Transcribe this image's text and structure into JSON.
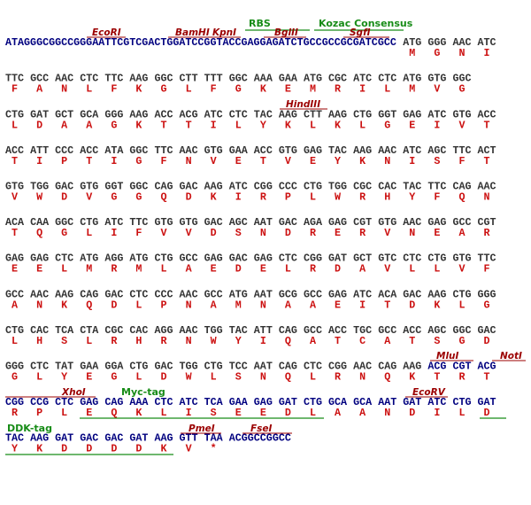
{
  "rows": [
    {
      "segments": [
        {
          "color": "#00007f",
          "codons": [
            "ATAGGGCGGCCGGGAATTCGTCGACTGGATCCGGTACCGAGGAGATCTGCCGCCGCGATCGCC"
          ]
        },
        {
          "color": "#333333",
          "codons": [
            "ATG",
            "GGG",
            "AAC",
            "ATC"
          ],
          "aa": [
            "M",
            "G",
            "N",
            "I"
          ]
        }
      ]
    },
    {
      "segments": [
        {
          "color": "#333333",
          "codons": [
            "TTC",
            "GCC",
            "AAC",
            "CTC",
            "TTC",
            "AAG",
            "GGC",
            "CTT",
            "TTT",
            "GGC",
            "AAA",
            "GAA",
            "ATG",
            "CGC",
            "ATC",
            "CTC",
            "ATG",
            "GTG",
            "GGC"
          ],
          "aa": [
            "F",
            "A",
            "N",
            "L",
            "F",
            "K",
            "G",
            "L",
            "F",
            "G",
            "K",
            "E",
            "M",
            "R",
            "I",
            "L",
            "M",
            "V",
            "G"
          ]
        }
      ]
    },
    {
      "segments": [
        {
          "color": "#333333",
          "codons": [
            "CTG",
            "GAT",
            "GCT",
            "GCA",
            "GGG",
            "AAG",
            "ACC",
            "ACG",
            "ATC",
            "CTC",
            "TAC",
            "AAG",
            "CTT",
            "AAG",
            "CTG",
            "GGT",
            "GAG",
            "ATC",
            "GTG",
            "ACC"
          ],
          "aa": [
            "L",
            "D",
            "A",
            "A",
            "G",
            "K",
            "T",
            "T",
            "I",
            "L",
            "Y",
            "K",
            "L",
            "K",
            "L",
            "G",
            "E",
            "I",
            "V",
            "T"
          ]
        }
      ]
    },
    {
      "segments": [
        {
          "color": "#333333",
          "codons": [
            "ACC",
            "ATT",
            "CCC",
            "ACC",
            "ATA",
            "GGC",
            "TTC",
            "AAC",
            "GTG",
            "GAA",
            "ACC",
            "GTG",
            "GAG",
            "TAC",
            "AAG",
            "AAC",
            "ATC",
            "AGC",
            "TTC",
            "ACT"
          ],
          "aa": [
            "T",
            "I",
            "P",
            "T",
            "I",
            "G",
            "F",
            "N",
            "V",
            "E",
            "T",
            "V",
            "E",
            "Y",
            "K",
            "N",
            "I",
            "S",
            "F",
            "T"
          ]
        }
      ]
    },
    {
      "segments": [
        {
          "color": "#333333",
          "codons": [
            "GTG",
            "TGG",
            "GAC",
            "GTG",
            "GGT",
            "GGC",
            "CAG",
            "GAC",
            "AAG",
            "ATC",
            "CGG",
            "CCC",
            "CTG",
            "TGG",
            "CGC",
            "CAC",
            "TAC",
            "TTC",
            "CAG",
            "AAC"
          ],
          "aa": [
            "V",
            "W",
            "D",
            "V",
            "G",
            "G",
            "Q",
            "D",
            "K",
            "I",
            "R",
            "P",
            "L",
            "W",
            "R",
            "H",
            "Y",
            "F",
            "Q",
            "N"
          ]
        }
      ]
    },
    {
      "segments": [
        {
          "color": "#333333",
          "codons": [
            "ACA",
            "CAA",
            "GGC",
            "CTG",
            "ATC",
            "TTC",
            "GTG",
            "GTG",
            "GAC",
            "AGC",
            "AAT",
            "GAC",
            "AGA",
            "GAG",
            "CGT",
            "GTG",
            "AAC",
            "GAG",
            "GCC",
            "CGT"
          ],
          "aa": [
            "T",
            "Q",
            "G",
            "L",
            "I",
            "F",
            "V",
            "V",
            "D",
            "S",
            "N",
            "D",
            "R",
            "E",
            "R",
            "V",
            "N",
            "E",
            "A",
            "R"
          ]
        }
      ]
    },
    {
      "segments": [
        {
          "color": "#333333",
          "codons": [
            "GAG",
            "GAG",
            "CTC",
            "ATG",
            "AGG",
            "ATG",
            "CTG",
            "GCC",
            "GAG",
            "GAC",
            "GAG",
            "CTC",
            "CGG",
            "GAT",
            "GCT",
            "GTC",
            "CTC",
            "CTG",
            "GTG",
            "TTC"
          ],
          "aa": [
            "E",
            "E",
            "L",
            "M",
            "R",
            "M",
            "L",
            "A",
            "E",
            "D",
            "E",
            "L",
            "R",
            "D",
            "A",
            "V",
            "L",
            "L",
            "V",
            "F"
          ]
        }
      ]
    },
    {
      "segments": [
        {
          "color": "#333333",
          "codons": [
            "GCC",
            "AAC",
            "AAG",
            "CAG",
            "GAC",
            "CTC",
            "CCC",
            "AAC",
            "GCC",
            "ATG",
            "AAT",
            "GCG",
            "GCC",
            "GAG",
            "ATC",
            "ACA",
            "GAC",
            "AAG",
            "CTG",
            "GGG"
          ],
          "aa": [
            "A",
            "N",
            "K",
            "Q",
            "D",
            "L",
            "P",
            "N",
            "A",
            "M",
            "N",
            "A",
            "A",
            "E",
            "I",
            "T",
            "D",
            "K",
            "L",
            "G"
          ]
        }
      ]
    },
    {
      "segments": [
        {
          "color": "#333333",
          "codons": [
            "CTG",
            "CAC",
            "TCA",
            "CTA",
            "CGC",
            "CAC",
            "AGG",
            "AAC",
            "TGG",
            "TAC",
            "ATT",
            "CAG",
            "GCC",
            "ACC",
            "TGC",
            "GCC",
            "ACC",
            "AGC",
            "GGC",
            "GAC"
          ],
          "aa": [
            "L",
            "H",
            "S",
            "L",
            "R",
            "H",
            "R",
            "N",
            "W",
            "Y",
            "I",
            "Q",
            "A",
            "T",
            "C",
            "A",
            "T",
            "S",
            "G",
            "D"
          ]
        }
      ]
    },
    {
      "segments": [
        {
          "color": "#333333",
          "codons": [
            "GGG",
            "CTC",
            "TAT",
            "GAA",
            "GGA",
            "CTG",
            "GAC",
            "TGG",
            "CTG",
            "TCC",
            "AAT",
            "CAG",
            "CTC",
            "CGG",
            "AAC",
            "CAG",
            "AAG"
          ],
          "aa": [
            "G",
            "L",
            "Y",
            "E",
            "G",
            "L",
            "D",
            "W",
            "L",
            "S",
            "N",
            "Q",
            "L",
            "R",
            "N",
            "Q",
            "K"
          ]
        },
        {
          "color": "#00007f",
          "codons": [
            "ACG",
            "CGT",
            "ACG"
          ],
          "aa": [
            "T",
            "R",
            "T"
          ]
        }
      ]
    },
    {
      "segments": [
        {
          "color": "#00007f",
          "codons": [
            "CGG",
            "CCG",
            "CTC",
            "GAG",
            "CAG",
            "AAA",
            "CTC",
            "ATC",
            "TCA",
            "GAA",
            "GAG",
            "GAT",
            "CTG",
            "GCA",
            "GCA",
            "AAT",
            "GAT",
            "ATC",
            "CTG",
            "GAT"
          ],
          "aa": [
            "R",
            "P",
            "L",
            "E",
            "Q",
            "K",
            "L",
            "I",
            "S",
            "E",
            "E",
            "D",
            "L",
            "A",
            "A",
            "N",
            "D",
            "I",
            "L",
            "D"
          ]
        }
      ]
    },
    {
      "segments": [
        {
          "color": "#00007f",
          "codons": [
            "TAC",
            "AAG",
            "GAT",
            "GAC",
            "GAC",
            "GAT",
            "AAG",
            "GTT",
            "TAA"
          ],
          "aa": [
            "Y",
            "K",
            "D",
            "D",
            "D",
            "D",
            "K",
            "V",
            "*"
          ]
        },
        {
          "color": "#00007f",
          "codons": [
            "ACGGCCGGCC"
          ]
        }
      ]
    }
  ],
  "annotations": [
    "RBS",
    "Kozac Consensus",
    "EcoRI",
    "BamHI",
    "KpnI",
    "BglII",
    "SgfI",
    "HindIII",
    "MluI",
    "NotI",
    "XhoI",
    "Myc-tag",
    "EcoRV",
    "DDK-tag",
    "PmeI",
    "FseI"
  ],
  "aa_color": "#cc1111"
}
